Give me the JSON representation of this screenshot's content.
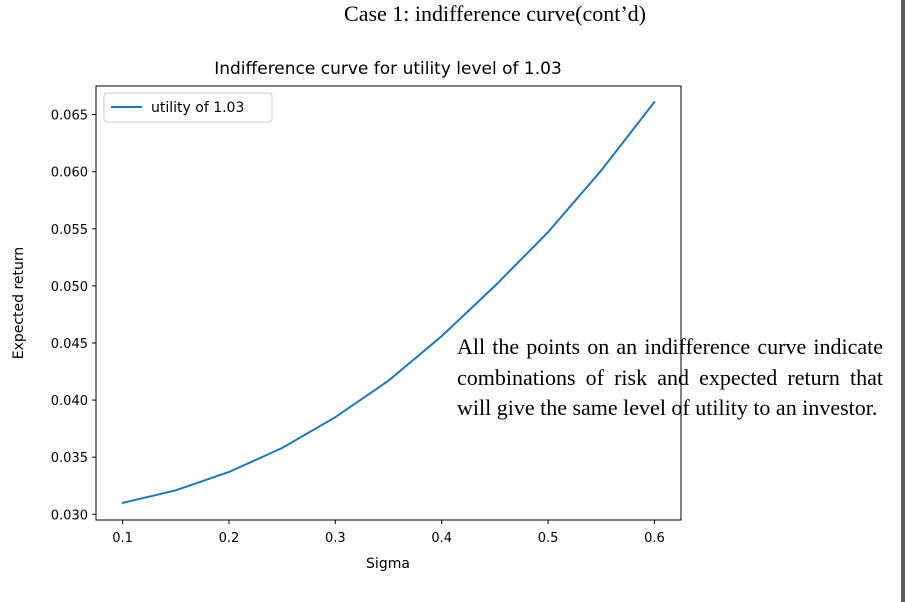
{
  "slide": {
    "title": "Case 1: indifference curve(cont’d)",
    "note": "All the points on an indifference curve indicate combinations of risk and expected return that will give the same level of utility to an investor."
  },
  "colors": {
    "series": "#1f77b4",
    "axes": "#000000",
    "page_border": "#5a5a5a"
  },
  "chart_data": {
    "type": "line",
    "title": "Indifference curve for utility level of 1.03",
    "xlabel": "Sigma",
    "ylabel": "Expected return",
    "xlim": [
      0.075,
      0.625
    ],
    "ylim": [
      0.0295,
      0.0675
    ],
    "xticks": [
      "0.1",
      "0.2",
      "0.3",
      "0.4",
      "0.5",
      "0.6"
    ],
    "yticks": [
      "0.030",
      "0.035",
      "0.040",
      "0.045",
      "0.050",
      "0.055",
      "0.060",
      "0.065"
    ],
    "grid": false,
    "legend_position": "top-left",
    "series": [
      {
        "name": "utility of 1.03",
        "x": [
          0.1,
          0.15,
          0.2,
          0.25,
          0.3,
          0.35,
          0.4,
          0.45,
          0.5,
          0.55,
          0.6
        ],
        "y": [
          0.031,
          0.0321,
          0.0337,
          0.0358,
          0.0385,
          0.0417,
          0.0456,
          0.05,
          0.0547,
          0.0601,
          0.0661
        ]
      }
    ]
  }
}
